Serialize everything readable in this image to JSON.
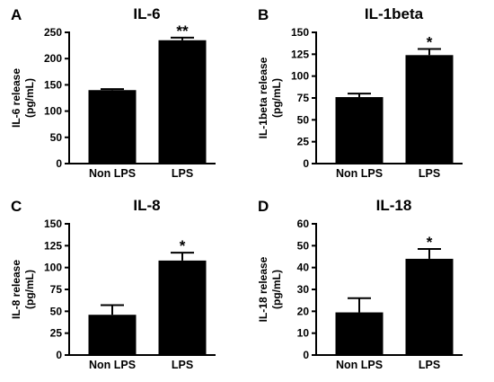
{
  "chart_data": [
    {
      "type": "bar",
      "panel": "A",
      "title": "IL-6",
      "ylabel": [
        "IL-6 release",
        "(pg/mL)"
      ],
      "categories": [
        "Non LPS",
        "LPS"
      ],
      "values": [
        140,
        235
      ],
      "errors": [
        2,
        5
      ],
      "significance": [
        "",
        "**"
      ],
      "ylim": [
        0,
        250
      ],
      "yticks": [
        0,
        50,
        100,
        150,
        200,
        250
      ]
    },
    {
      "type": "bar",
      "panel": "B",
      "title": "IL-1beta",
      "ylabel": [
        "IL-1beta release",
        "(pg/mL)"
      ],
      "categories": [
        "Non LPS",
        "LPS"
      ],
      "values": [
        76,
        124
      ],
      "errors": [
        4,
        7
      ],
      "significance": [
        "",
        "*"
      ],
      "ylim": [
        0,
        150
      ],
      "yticks": [
        0,
        25,
        50,
        75,
        100,
        125,
        150
      ]
    },
    {
      "type": "bar",
      "panel": "C",
      "title": "IL-8",
      "ylabel": [
        "IL-8 release",
        "(pg/mL)"
      ],
      "categories": [
        "Non LPS",
        "LPS"
      ],
      "values": [
        46,
        108
      ],
      "errors": [
        11,
        9
      ],
      "significance": [
        "",
        "*"
      ],
      "ylim": [
        0,
        150
      ],
      "yticks": [
        0,
        25,
        50,
        75,
        100,
        125,
        150
      ]
    },
    {
      "type": "bar",
      "panel": "D",
      "title": "IL-18",
      "ylabel": [
        "IL-18 release",
        "(pg/mL)"
      ],
      "categories": [
        "Non LPS",
        "LPS"
      ],
      "values": [
        19.5,
        44
      ],
      "errors": [
        6.5,
        4.5
      ],
      "significance": [
        "",
        "*"
      ],
      "ylim": [
        0,
        60
      ],
      "yticks": [
        0,
        10,
        20,
        30,
        40,
        50,
        60
      ]
    }
  ]
}
